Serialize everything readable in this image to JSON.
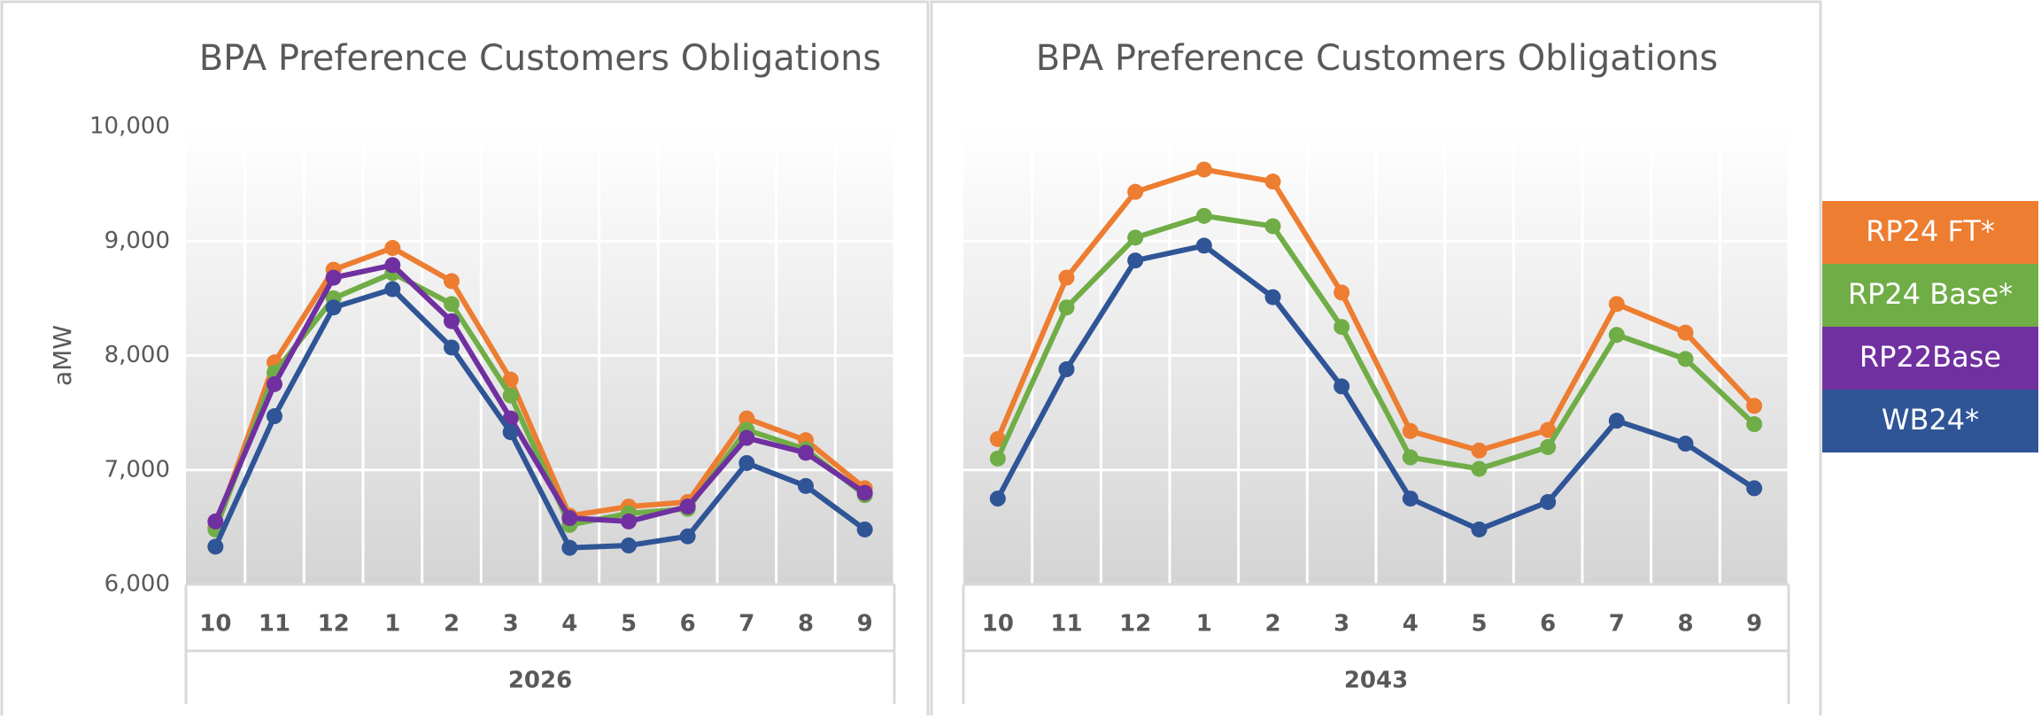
{
  "chart_data": [
    {
      "type": "line",
      "title": "BPA Preference Customers Obligations",
      "ylabel": "aMW",
      "x_label": "2026",
      "categories": [
        "10",
        "11",
        "12",
        "1",
        "2",
        "3",
        "4",
        "5",
        "6",
        "7",
        "8",
        "9"
      ],
      "ylim": [
        6000,
        10000
      ],
      "yticks": [
        {
          "value": 6000,
          "label": "6,000"
        },
        {
          "value": 7000,
          "label": "7,000"
        },
        {
          "value": 8000,
          "label": "8,000"
        },
        {
          "value": 9000,
          "label": "9,000"
        },
        {
          "value": 10000,
          "label": "10,000"
        }
      ],
      "grid": true,
      "show_ytick_labels": true,
      "series": [
        {
          "name": "RP24 FT*",
          "color": "#ed7d31",
          "values": [
            6500,
            7940,
            8750,
            8940,
            8650,
            7790,
            6600,
            6680,
            6720,
            7450,
            7260,
            6840
          ]
        },
        {
          "name": "RP24 Base*",
          "color": "#70ad47",
          "values": [
            6480,
            7850,
            8500,
            8720,
            8450,
            7650,
            6520,
            6620,
            6660,
            7350,
            7180,
            6780
          ]
        },
        {
          "name": "RP22Base",
          "color": "#7030a0",
          "values": [
            6550,
            7750,
            8680,
            8790,
            8300,
            7450,
            6580,
            6550,
            6680,
            7280,
            7150,
            6800
          ]
        },
        {
          "name": "WB24*",
          "color": "#2f5597",
          "values": [
            6330,
            7470,
            8420,
            8580,
            8070,
            7330,
            6320,
            6340,
            6420,
            7060,
            6860,
            6480
          ]
        }
      ]
    },
    {
      "type": "line",
      "title": "BPA Preference Customers Obligations",
      "x_label": "2043",
      "categories": [
        "10",
        "11",
        "12",
        "1",
        "2",
        "3",
        "4",
        "5",
        "6",
        "7",
        "8",
        "9"
      ],
      "ylim": [
        6000,
        10000
      ],
      "yticks": [
        6000,
        7000,
        8000,
        9000,
        10000
      ],
      "grid": true,
      "show_ytick_labels": false,
      "series": [
        {
          "name": "RP24 FT*",
          "color": "#ed7d31",
          "values": [
            7270,
            8680,
            9430,
            9625,
            9520,
            8550,
            7340,
            7170,
            7350,
            8450,
            8200,
            7560
          ]
        },
        {
          "name": "RP24 Base*",
          "color": "#70ad47",
          "values": [
            7100,
            8420,
            9030,
            9220,
            9130,
            8250,
            7110,
            7010,
            7200,
            8180,
            7970,
            7400
          ]
        },
        {
          "name": "WB24*",
          "color": "#2f5597",
          "values": [
            6750,
            7880,
            8830,
            8960,
            8510,
            7730,
            6750,
            6480,
            6720,
            7430,
            7230,
            6840
          ]
        }
      ]
    }
  ]
}
